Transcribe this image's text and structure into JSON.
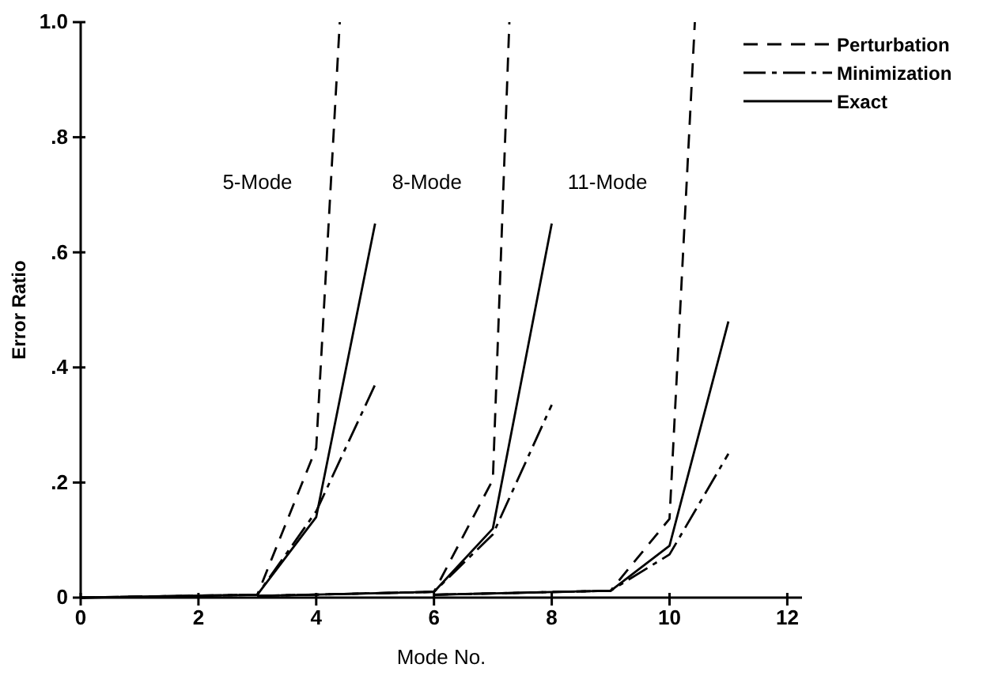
{
  "chart_data": {
    "type": "line",
    "xlabel": "Mode No.",
    "ylabel": "Error Ratio",
    "xlim": [
      0,
      12.25
    ],
    "xticks": [
      0,
      2,
      4,
      6,
      8,
      10,
      12
    ],
    "ylim": [
      0,
      1.0
    ],
    "yticks": [
      0,
      {
        "value": 0.2,
        "label": ".2"
      },
      {
        "value": 0.4,
        "label": ".4"
      },
      {
        "value": 0.6,
        "label": ".6"
      },
      {
        "value": 0.8,
        "label": ".8"
      },
      {
        "value": 1.0,
        "label": "1.0"
      }
    ],
    "grid": false,
    "legend": "top right",
    "marker": "none",
    "series": [
      {
        "name": "Perturbation",
        "color": "#000000",
        "line_style": "dashed",
        "x": [
          0,
          3,
          4,
          4.4
        ],
        "values": [
          0,
          0.005,
          0.26,
          1.0
        ]
      },
      {
        "name": "Minimization",
        "color": "#000000",
        "line_style": "dashdot",
        "x": [
          0,
          3,
          4,
          5
        ],
        "values": [
          0,
          0.005,
          0.15,
          0.37
        ]
      },
      {
        "name": "Exact",
        "color": "#000000",
        "line_style": "solid",
        "x": [
          0,
          3,
          4,
          5
        ],
        "values": [
          0,
          0.005,
          0.14,
          0.65
        ]
      },
      {
        "color": "#000000",
        "line_style": "dashed",
        "x": [
          3,
          6,
          7,
          7.28
        ],
        "values": [
          0.003,
          0.01,
          0.205,
          1.0
        ]
      },
      {
        "color": "#000000",
        "line_style": "dashdot",
        "x": [
          3,
          6,
          7,
          8
        ],
        "values": [
          0.003,
          0.01,
          0.11,
          0.335
        ]
      },
      {
        "color": "#000000",
        "line_style": "solid",
        "x": [
          3,
          6,
          7,
          8
        ],
        "values": [
          0.003,
          0.01,
          0.12,
          0.65
        ]
      },
      {
        "color": "#000000",
        "line_style": "dashed",
        "x": [
          6,
          9,
          10,
          10.43
        ],
        "values": [
          0.005,
          0.012,
          0.137,
          1.0
        ]
      },
      {
        "color": "#000000",
        "line_style": "dashdot",
        "x": [
          6,
          9,
          10,
          11
        ],
        "values": [
          0.005,
          0.012,
          0.075,
          0.25
        ]
      },
      {
        "color": "#000000",
        "line_style": "solid",
        "x": [
          6,
          9,
          10,
          11
        ],
        "values": [
          0.005,
          0.012,
          0.09,
          0.48
        ]
      }
    ],
    "annotations": [
      "5-Mode",
      "8-Mode",
      "11-Mode"
    ]
  }
}
